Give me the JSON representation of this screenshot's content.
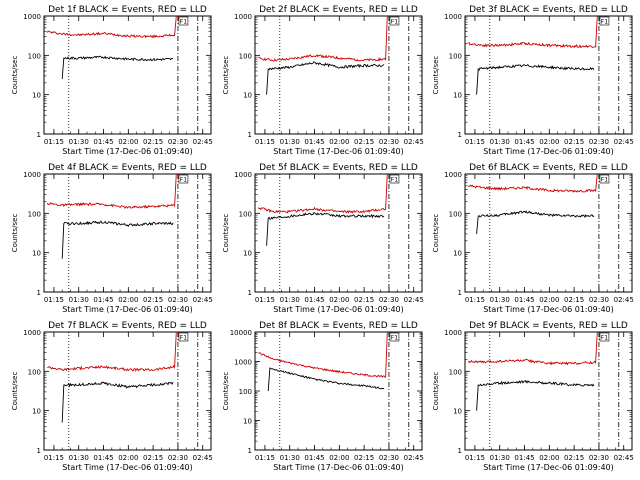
{
  "chart_data": [
    {
      "type": "line",
      "title": "Det 1f BLACK = Events, RED = LLD",
      "xlabel": "Start Time (17-Dec-06 01:09:40)",
      "ylabel": "Counts/sec",
      "yscale": "log",
      "ylim": [
        1,
        1000
      ],
      "x_ticks": [
        "01:15",
        "01:30",
        "01:45",
        "02:00",
        "02:15",
        "02:30",
        "02:45"
      ],
      "y_ticks": [
        "1",
        "10",
        "100",
        "1000"
      ],
      "flag_label": "F1",
      "series": [
        {
          "color": "#cc0000",
          "x": [
            "01:11",
            "01:20",
            "01:30",
            "01:45",
            "02:00",
            "02:15",
            "02:28",
            "02:29"
          ],
          "y": [
            400,
            350,
            330,
            360,
            310,
            300,
            330,
            1000
          ]
        },
        {
          "color": "#000000",
          "x": [
            "01:20",
            "01:21",
            "01:30",
            "01:45",
            "02:00",
            "02:15",
            "02:27"
          ],
          "y": [
            25,
            85,
            85,
            90,
            80,
            78,
            80
          ]
        }
      ]
    },
    {
      "type": "line",
      "title": "Det 2f BLACK = Events, RED = LLD",
      "xlabel": "Start Time (17-Dec-06 01:09:40)",
      "ylabel": "Counts/sec",
      "yscale": "log",
      "ylim": [
        1,
        1000
      ],
      "x_ticks": [
        "01:15",
        "01:30",
        "01:45",
        "02:00",
        "02:15",
        "02:30",
        "02:45"
      ],
      "y_ticks": [
        "1",
        "10",
        "100",
        "1000"
      ],
      "flag_label": "F1",
      "series": [
        {
          "color": "#cc0000",
          "x": [
            "01:11",
            "01:20",
            "01:30",
            "01:45",
            "02:00",
            "02:15",
            "02:28",
            "02:29"
          ],
          "y": [
            85,
            75,
            80,
            100,
            85,
            75,
            80,
            1000
          ]
        },
        {
          "color": "#000000",
          "x": [
            "01:16",
            "01:17",
            "01:30",
            "01:45",
            "02:00",
            "02:15",
            "02:27"
          ],
          "y": [
            10,
            45,
            50,
            65,
            50,
            55,
            55
          ]
        }
      ]
    },
    {
      "type": "line",
      "title": "Det 3f BLACK = Events, RED = LLD",
      "xlabel": "Start Time (17-Dec-06 01:09:40)",
      "ylabel": "Counts/sec",
      "yscale": "log",
      "ylim": [
        1,
        1000
      ],
      "x_ticks": [
        "01:15",
        "01:30",
        "01:45",
        "02:00",
        "02:15",
        "02:30",
        "02:45"
      ],
      "y_ticks": [
        "1",
        "10",
        "100",
        "1000"
      ],
      "flag_label": "F1",
      "series": [
        {
          "color": "#cc0000",
          "x": [
            "01:11",
            "01:20",
            "01:30",
            "01:45",
            "02:00",
            "02:15",
            "02:28",
            "02:29"
          ],
          "y": [
            200,
            180,
            180,
            200,
            180,
            170,
            170,
            1000
          ]
        },
        {
          "color": "#000000",
          "x": [
            "01:16",
            "01:17",
            "01:30",
            "01:45",
            "02:00",
            "02:15",
            "02:27"
          ],
          "y": [
            10,
            45,
            50,
            55,
            50,
            45,
            45
          ]
        }
      ]
    },
    {
      "type": "line",
      "title": "Det 4f BLACK = Events, RED = LLD",
      "xlabel": "Start Time (17-Dec-06 01:09:40)",
      "ylabel": "Counts/sec",
      "yscale": "log",
      "ylim": [
        1,
        1000
      ],
      "x_ticks": [
        "01:15",
        "01:30",
        "01:45",
        "02:00",
        "02:15",
        "02:30",
        "02:45"
      ],
      "y_ticks": [
        "1",
        "10",
        "100",
        "1000"
      ],
      "flag_label": "F1",
      "series": [
        {
          "color": "#cc0000",
          "x": [
            "01:11",
            "01:20",
            "01:30",
            "01:45",
            "02:00",
            "02:15",
            "02:28",
            "02:29"
          ],
          "y": [
            180,
            160,
            170,
            170,
            140,
            150,
            160,
            1000
          ]
        },
        {
          "color": "#000000",
          "x": [
            "01:20",
            "01:21",
            "01:30",
            "01:45",
            "02:00",
            "02:15",
            "02:27"
          ],
          "y": [
            7,
            55,
            55,
            60,
            50,
            55,
            55
          ]
        }
      ]
    },
    {
      "type": "line",
      "title": "Det 5f BLACK = Events, RED = LLD",
      "xlabel": "Start Time (17-Dec-06 01:09:40)",
      "ylabel": "Counts/sec",
      "yscale": "log",
      "ylim": [
        1,
        1000
      ],
      "x_ticks": [
        "01:15",
        "01:30",
        "01:45",
        "02:00",
        "02:15",
        "02:30",
        "02:45"
      ],
      "y_ticks": [
        "1",
        "10",
        "100",
        "1000"
      ],
      "flag_label": "F1",
      "series": [
        {
          "color": "#cc0000",
          "x": [
            "01:11",
            "01:20",
            "01:30",
            "01:45",
            "02:00",
            "02:15",
            "02:28",
            "02:29"
          ],
          "y": [
            140,
            110,
            110,
            130,
            110,
            110,
            130,
            1000
          ]
        },
        {
          "color": "#000000",
          "x": [
            "01:16",
            "01:17",
            "01:30",
            "01:45",
            "02:00",
            "02:15",
            "02:27"
          ],
          "y": [
            15,
            75,
            85,
            100,
            85,
            85,
            85
          ]
        }
      ]
    },
    {
      "type": "line",
      "title": "Det 6f BLACK = Events, RED = LLD",
      "xlabel": "Start Time (17-Dec-06 01:09:40)",
      "ylabel": "Counts/sec",
      "yscale": "log",
      "ylim": [
        1,
        1000
      ],
      "x_ticks": [
        "01:15",
        "01:30",
        "01:45",
        "02:00",
        "02:15",
        "02:30",
        "02:45"
      ],
      "y_ticks": [
        "1",
        "10",
        "100",
        "1000"
      ],
      "flag_label": "F1",
      "series": [
        {
          "color": "#cc0000",
          "x": [
            "01:11",
            "01:20",
            "01:30",
            "01:45",
            "02:00",
            "02:15",
            "02:28",
            "02:29"
          ],
          "y": [
            500,
            450,
            420,
            450,
            380,
            370,
            380,
            1000
          ]
        },
        {
          "color": "#000000",
          "x": [
            "01:16",
            "01:17",
            "01:30",
            "01:45",
            "02:00",
            "02:15",
            "02:27"
          ],
          "y": [
            30,
            85,
            90,
            110,
            90,
            85,
            85
          ]
        }
      ]
    },
    {
      "type": "line",
      "title": "Det 7f BLACK = Events, RED = LLD",
      "xlabel": "Start Time (17-Dec-06 01:09:40)",
      "ylabel": "Counts/sec",
      "yscale": "log",
      "ylim": [
        1,
        1000
      ],
      "x_ticks": [
        "01:15",
        "01:30",
        "01:45",
        "02:00",
        "02:15",
        "02:30",
        "02:45"
      ],
      "y_ticks": [
        "1",
        "10",
        "100",
        "1000"
      ],
      "flag_label": "F1",
      "series": [
        {
          "color": "#cc0000",
          "x": [
            "01:11",
            "01:20",
            "01:30",
            "01:45",
            "02:00",
            "02:15",
            "02:28",
            "02:29"
          ],
          "y": [
            130,
            110,
            120,
            130,
            110,
            110,
            130,
            1000
          ]
        },
        {
          "color": "#000000",
          "x": [
            "01:20",
            "01:21",
            "01:30",
            "01:45",
            "02:00",
            "02:15",
            "02:27"
          ],
          "y": [
            5,
            45,
            45,
            50,
            40,
            45,
            50
          ]
        }
      ]
    },
    {
      "type": "line",
      "title": "Det 8f BLACK = Events, RED = LLD",
      "xlabel": "Start Time (17-Dec-06 01:09:40)",
      "ylabel": "Counts/sec",
      "yscale": "log",
      "ylim": [
        1,
        10000
      ],
      "x_ticks": [
        "01:15",
        "01:30",
        "01:45",
        "02:00",
        "02:15",
        "02:30",
        "02:45"
      ],
      "y_ticks": [
        "1",
        "10",
        "100",
        "1000",
        "10000"
      ],
      "flag_label": "F1",
      "series": [
        {
          "color": "#cc0000",
          "x": [
            "01:11",
            "01:20",
            "01:30",
            "01:45",
            "02:00",
            "02:15",
            "02:28",
            "02:29"
          ],
          "y": [
            2000,
            1200,
            900,
            600,
            450,
            350,
            300,
            10000
          ]
        },
        {
          "color": "#000000",
          "x": [
            "01:17",
            "01:18",
            "01:30",
            "01:45",
            "02:00",
            "02:15",
            "02:27"
          ],
          "y": [
            100,
            600,
            400,
            250,
            180,
            150,
            120
          ]
        }
      ]
    },
    {
      "type": "line",
      "title": "Det 9f BLACK = Events, RED = LLD",
      "xlabel": "Start Time (17-Dec-06 01:09:40)",
      "ylabel": "Counts/sec",
      "yscale": "log",
      "ylim": [
        1,
        1000
      ],
      "x_ticks": [
        "01:15",
        "01:30",
        "01:45",
        "02:00",
        "02:15",
        "02:30",
        "02:45"
      ],
      "y_ticks": [
        "1",
        "10",
        "100",
        "1000"
      ],
      "flag_label": "F1",
      "series": [
        {
          "color": "#cc0000",
          "x": [
            "01:11",
            "01:20",
            "01:30",
            "01:45",
            "02:00",
            "02:15",
            "02:28",
            "02:29"
          ],
          "y": [
            180,
            170,
            180,
            190,
            160,
            160,
            170,
            1000
          ]
        },
        {
          "color": "#000000",
          "x": [
            "01:16",
            "01:17",
            "01:30",
            "01:45",
            "02:00",
            "02:15",
            "02:27"
          ],
          "y": [
            10,
            45,
            50,
            55,
            50,
            45,
            45
          ]
        }
      ]
    }
  ]
}
